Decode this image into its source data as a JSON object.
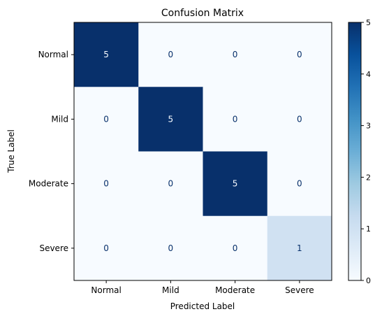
{
  "chart_data": {
    "type": "heatmap",
    "title": "Confusion Matrix",
    "xlabel": "Predicted Label",
    "ylabel": "True Label",
    "x_categories": [
      "Normal",
      "Mild",
      "Moderate",
      "Severe"
    ],
    "y_categories": [
      "Normal",
      "Mild",
      "Moderate",
      "Severe"
    ],
    "matrix": [
      [
        5,
        0,
        0,
        0
      ],
      [
        0,
        5,
        0,
        0
      ],
      [
        0,
        0,
        5,
        0
      ],
      [
        0,
        0,
        0,
        1
      ]
    ],
    "colormap": "Blues",
    "color_range": [
      0,
      5
    ],
    "colorbar_ticks": [
      0,
      1,
      2,
      3,
      4,
      5
    ],
    "grid": false
  },
  "colors": {
    "low": "#f7fbff",
    "high": "#08306b",
    "text_on_dark": "#f7fbff",
    "text_on_light": "#08306b"
  }
}
